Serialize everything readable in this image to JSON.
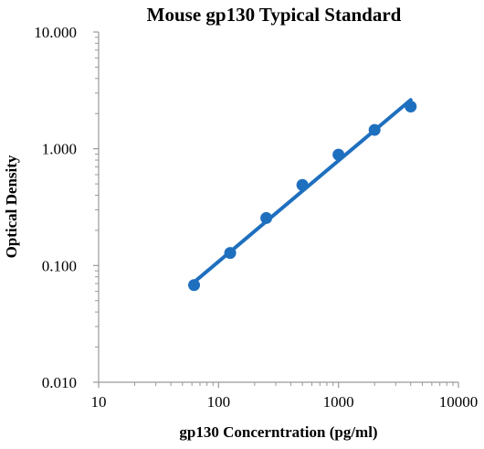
{
  "chart_data": {
    "type": "scatter",
    "title": "Mouse gp130 Typical Standard",
    "xlabel": "gp130 Concerntration (pg/ml)",
    "ylabel": "Optical Density",
    "x_scale": "log",
    "y_scale": "log",
    "xlim": [
      10,
      10000
    ],
    "ylim": [
      0.01,
      10
    ],
    "x_ticks": [
      {
        "value": 10,
        "label": "10"
      },
      {
        "value": 100,
        "label": "100"
      },
      {
        "value": 1000,
        "label": "1000"
      },
      {
        "value": 10000,
        "label": "10000"
      }
    ],
    "y_ticks": [
      {
        "value": 0.01,
        "label": "0.010"
      },
      {
        "value": 0.1,
        "label": "0.100"
      },
      {
        "value": 1,
        "label": "1.000"
      },
      {
        "value": 10,
        "label": "10.000"
      }
    ],
    "grid": false,
    "legend": "none",
    "colors": {
      "series": "#1f6fbf",
      "axis": "#999999",
      "text": "#000000"
    },
    "series": [
      {
        "points": [
          {
            "x": 62.5,
            "y": 0.068
          },
          {
            "x": 125,
            "y": 0.128
          },
          {
            "x": 250,
            "y": 0.255
          },
          {
            "x": 500,
            "y": 0.49
          },
          {
            "x": 1000,
            "y": 0.89
          },
          {
            "x": 2000,
            "y": 1.45
          },
          {
            "x": 4000,
            "y": 2.3
          }
        ],
        "fit_line": [
          {
            "x": 62.5,
            "y": 0.072
          },
          {
            "x": 4000,
            "y": 2.62
          }
        ]
      }
    ]
  }
}
